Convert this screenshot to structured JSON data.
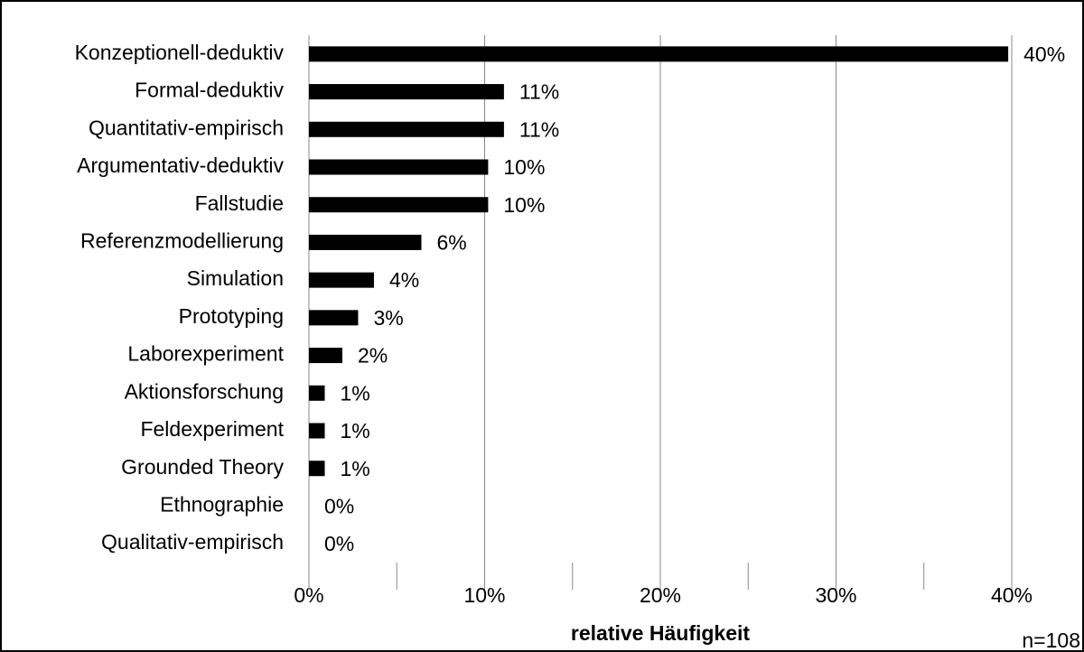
{
  "chart_data": {
    "type": "hbar",
    "categories": [
      "Konzeptionell-deduktiv",
      "Formal-deduktiv",
      "Quantitativ-empirisch",
      "Argumentativ-deduktiv",
      "Fallstudie",
      "Referenzmodellierung",
      "Simulation",
      "Prototyping",
      "Laborexperiment",
      "Aktionsforschung",
      "Feldexperiment",
      "Grounded Theory",
      "Ethnographie",
      "Qualitativ-empirisch"
    ],
    "values": [
      39.8,
      11.1,
      11.1,
      10.2,
      10.2,
      6.4,
      3.7,
      2.8,
      1.9,
      0.9,
      0.9,
      0.9,
      0,
      0
    ],
    "value_labels": [
      "40%",
      "11%",
      "11%",
      "10%",
      "10%",
      "6%",
      "4%",
      "3%",
      "2%",
      "1%",
      "1%",
      "1%",
      "0%",
      "0%"
    ],
    "color": "#000000",
    "xlim": [
      0,
      40
    ],
    "xticks": [
      {
        "value": 0,
        "label": "0%"
      },
      {
        "value": 10,
        "label": "10%"
      },
      {
        "value": 20,
        "label": "20%"
      },
      {
        "value": 30,
        "label": "30%"
      },
      {
        "value": 40,
        "label": "40%"
      }
    ],
    "minor_xticks": [
      5,
      15,
      25,
      35
    ],
    "grid": true,
    "xlabel": "relative Häufigkeit",
    "annotation": "n=108"
  }
}
